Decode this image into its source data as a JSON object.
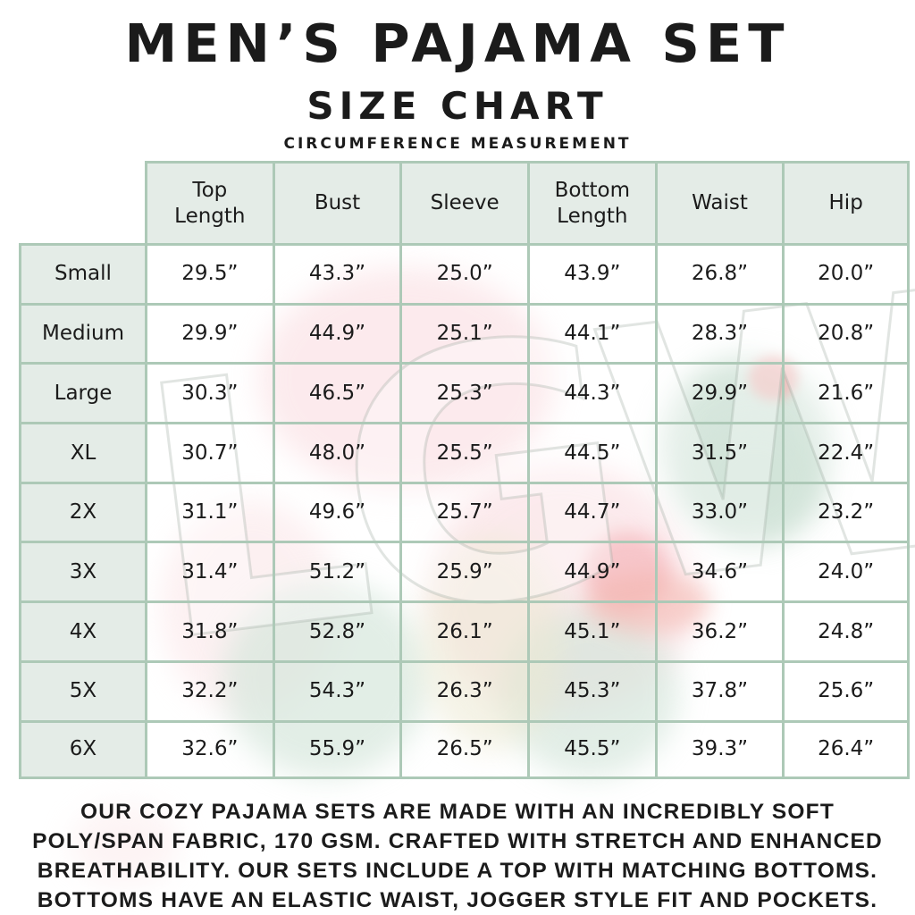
{
  "header": {
    "title": "MEN’S PAJAMA SET",
    "subtitle": "SIZE CHART",
    "note": "CIRCUMFERENCE MEASUREMENT"
  },
  "chart_data": {
    "type": "table",
    "title": "Men's Pajama Set Size Chart",
    "columns": [
      "Top Length",
      "Bust",
      "Sleeve",
      "Bottom Length",
      "Waist",
      "Hip"
    ],
    "rows": [
      {
        "size": "Small",
        "values": [
          "29.5”",
          "43.3”",
          "25.0”",
          "43.9”",
          "26.8”",
          "20.0”"
        ]
      },
      {
        "size": "Medium",
        "values": [
          "29.9”",
          "44.9”",
          "25.1”",
          "44.1”",
          "28.3”",
          "20.8”"
        ]
      },
      {
        "size": "Large",
        "values": [
          "30.3”",
          "46.5”",
          "25.3”",
          "44.3”",
          "29.9”",
          "21.6”"
        ]
      },
      {
        "size": "XL",
        "values": [
          "30.7”",
          "48.0”",
          "25.5”",
          "44.5”",
          "31.5”",
          "22.4”"
        ]
      },
      {
        "size": "2X",
        "values": [
          "31.1”",
          "49.6”",
          "25.7”",
          "44.7”",
          "33.0”",
          "23.2”"
        ]
      },
      {
        "size": "3X",
        "values": [
          "31.4”",
          "51.2”",
          "25.9”",
          "44.9”",
          "34.6”",
          "24.0”"
        ]
      },
      {
        "size": "4X",
        "values": [
          "31.8”",
          "52.8”",
          "26.1”",
          "45.1”",
          "36.2”",
          "24.8”"
        ]
      },
      {
        "size": "5X",
        "values": [
          "32.2”",
          "54.3”",
          "26.3”",
          "45.3”",
          "37.8”",
          "25.6”"
        ]
      },
      {
        "size": "6X",
        "values": [
          "32.6”",
          "55.9”",
          "26.5”",
          "45.5”",
          "39.3”",
          "26.4”"
        ]
      }
    ]
  },
  "description_lines": [
    "OUR COZY PAJAMA SETS ARE MADE WITH AN INCREDIBLY SOFT",
    "POLY/SPAN FABRIC, 170 GSM. CRAFTED WITH STRETCH AND ENHANCED",
    "BREATHABILITY. OUR SETS INCLUDE A TOP WITH MATCHING BOTTOMS.",
    "BOTTOMS HAVE AN ELASTIC WAIST, JOGGER STYLE FIT AND POCKETS."
  ],
  "watermark": {
    "text": "LGW"
  },
  "colors": {
    "header_cell_fill": "#e4ece7",
    "grid_line": "#adc9b7",
    "text": "#1b1b1b",
    "watermark_pink": "#fbe4e7",
    "watermark_green": "#cde1d5",
    "watermark_red": "#f5b3b8"
  }
}
